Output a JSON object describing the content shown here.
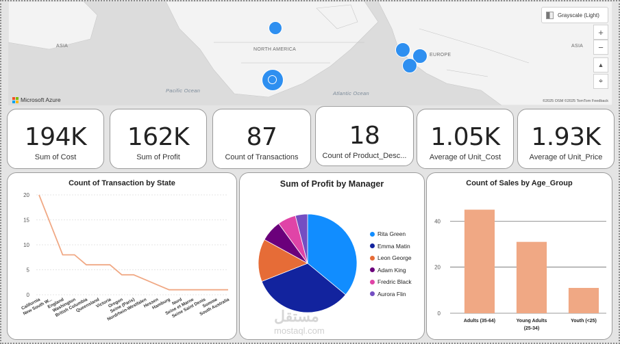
{
  "map": {
    "style_picker_label": "Grayscale (Light)",
    "zoom_in": "+",
    "zoom_out": "−",
    "tilt": "▲",
    "compass": "⌖",
    "provider": "Microsoft Azure",
    "attribution": "©2025 OSM ©2025 TomTom Feedback",
    "labels": {
      "asia_left": "ASIA",
      "north_america": "NORTH AMERICA",
      "asia_right": "ASIA",
      "europe": "EUROPE",
      "pacific": "Pacific Ocean",
      "atlantic": "Atlantic Ocean"
    }
  },
  "kpis": [
    {
      "value": "194K",
      "label": "Sum of  Cost"
    },
    {
      "value": "162K",
      "label": "Sum of  Profit"
    },
    {
      "value": "87",
      "label": "Count of Transactions"
    },
    {
      "value": "18",
      "label": "Count of Product_Desc..."
    },
    {
      "value": "1.05K",
      "label": "Average of  Unit_Cost"
    },
    {
      "value": "1.93K",
      "label": "Average of  Unit_Price"
    }
  ],
  "chart_data": [
    {
      "type": "line",
      "title": "Count of Transaction by State",
      "categories": [
        "California",
        "New South W...",
        "England",
        "Washington",
        "British Columbia",
        "Queensland",
        "Victoria",
        "Oregon",
        "Seine (Paris)",
        "Nordrhein-Westfalen",
        "Hessen",
        "Hamburg",
        "Nord",
        "Seine et Marne",
        "Seine Saint Denis",
        "Somme",
        "South Australia"
      ],
      "values": [
        20,
        14,
        8,
        8,
        6,
        6,
        6,
        4,
        4,
        3,
        2,
        1,
        1,
        1,
        1,
        1,
        1
      ],
      "ylim": [
        0,
        20
      ],
      "yticks": [
        0,
        5,
        10,
        15,
        20
      ],
      "grid": true,
      "color": "#f0a884"
    },
    {
      "type": "pie",
      "title": "Sum of Profit by Manager",
      "legend_position": "right",
      "slices": [
        {
          "name": "Rita Green",
          "value": 36,
          "color": "#118dff"
        },
        {
          "name": "Emma Matin",
          "value": 33,
          "color": "#12239e"
        },
        {
          "name": "Leon George",
          "value": 14,
          "color": "#e66c37"
        },
        {
          "name": "Adam King",
          "value": 7,
          "color": "#6b007b"
        },
        {
          "name": "Fredric Black",
          "value": 6,
          "color": "#e044a7"
        },
        {
          "name": "Aurora Flin",
          "value": 4,
          "color": "#744ec2"
        }
      ]
    },
    {
      "type": "bar",
      "title": "Count of Sales by Age_Group",
      "categories": [
        "Adults (35-64)",
        "Young Adults (25-34)",
        "Youth (<25)"
      ],
      "category_lines": [
        [
          "Adults (35-64)"
        ],
        [
          "Young Adults",
          "(25-34)"
        ],
        [
          "Youth (<25)"
        ]
      ],
      "values": [
        45,
        31,
        11
      ],
      "ylim": [
        0,
        52
      ],
      "yticks": [
        0,
        20,
        40
      ],
      "grid": true,
      "color": "#f0a884"
    }
  ],
  "watermark": {
    "arabic": "مستقل",
    "latin": "mostaql.com"
  }
}
